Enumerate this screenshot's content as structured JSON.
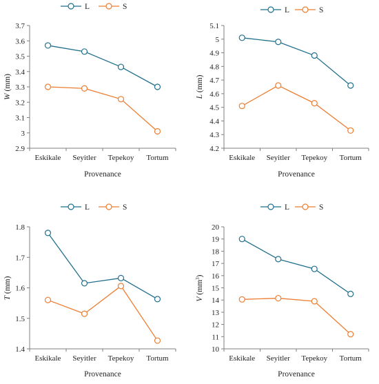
{
  "colors": {
    "L": "#1f6e8c",
    "S": "#ed7d31",
    "axis": "#7f7f7f"
  },
  "legend": {
    "L": "L",
    "S": "S"
  },
  "chart_data": [
    {
      "type": "line",
      "categories": [
        "Eskikale",
        "Seyitler",
        "Tepekoy",
        "Tortum"
      ],
      "series": [
        {
          "name": "L",
          "values": [
            3.57,
            3.53,
            3.43,
            3.3
          ]
        },
        {
          "name": "S",
          "values": [
            3.3,
            3.29,
            3.22,
            3.01
          ]
        }
      ],
      "xlabel": "Provenance",
      "ylabel": "W (mm)",
      "ylabel_var": "W",
      "ylabel_unit": " (mm)",
      "ylabel_sup": "",
      "ylabel_close": "",
      "ylim": [
        2.9,
        3.7
      ],
      "yticks": [
        "2.9",
        "3",
        "3.1",
        "3.2",
        "3.3",
        "3.4",
        "3.5",
        "3.6",
        "3.7"
      ],
      "legend_position": "top"
    },
    {
      "type": "line",
      "categories": [
        "Eskikale",
        "Seyitler",
        "Tepekoy",
        "Tortum"
      ],
      "series": [
        {
          "name": "L",
          "values": [
            5.01,
            4.98,
            4.88,
            4.66
          ]
        },
        {
          "name": "S",
          "values": [
            4.51,
            4.66,
            4.53,
            4.33
          ]
        }
      ],
      "xlabel": "Provenance",
      "ylabel": "L (mm)",
      "ylabel_var": "L",
      "ylabel_unit": " (mm)",
      "ylabel_sup": "",
      "ylabel_close": "",
      "ylim": [
        4.2,
        5.1
      ],
      "yticks": [
        "4.2",
        "4.3",
        "4.4",
        "4.5",
        "4.6",
        "4.7",
        "4.8",
        "4.9",
        "5",
        "5.1"
      ],
      "legend_position": "top"
    },
    {
      "type": "line",
      "categories": [
        "Eskikale",
        "Seyitler",
        "Tepekoy",
        "Tortum"
      ],
      "series": [
        {
          "name": "L",
          "values": [
            1.78,
            1.615,
            1.632,
            1.563
          ]
        },
        {
          "name": "S",
          "values": [
            1.56,
            1.515,
            1.606,
            1.427
          ]
        }
      ],
      "xlabel": "Provenance",
      "ylabel": "T (mm)",
      "ylabel_var": "T",
      "ylabel_unit": " (mm)",
      "ylabel_sup": "",
      "ylabel_close": "",
      "ylim": [
        1.4,
        1.8
      ],
      "yticks": [
        "1.4",
        "1.5",
        "1.6",
        "1.7",
        "1.8"
      ],
      "legend_position": "top"
    },
    {
      "type": "line",
      "categories": [
        "Eskikale",
        "Seyitler",
        "Tepekoy",
        "Tortum"
      ],
      "series": [
        {
          "name": "L",
          "values": [
            19.0,
            17.35,
            16.55,
            14.5
          ]
        },
        {
          "name": "S",
          "values": [
            14.05,
            14.15,
            13.9,
            11.2
          ]
        }
      ],
      "xlabel": "Provenance",
      "ylabel": "V (mm3)",
      "ylabel_var": "V",
      "ylabel_unit": " (mm",
      "ylabel_sup": "3",
      "ylabel_close": ")",
      "ylim": [
        10,
        20
      ],
      "yticks": [
        "10",
        "11",
        "12",
        "13",
        "14",
        "15",
        "16",
        "17",
        "18",
        "19",
        "20"
      ],
      "legend_position": "top"
    }
  ]
}
